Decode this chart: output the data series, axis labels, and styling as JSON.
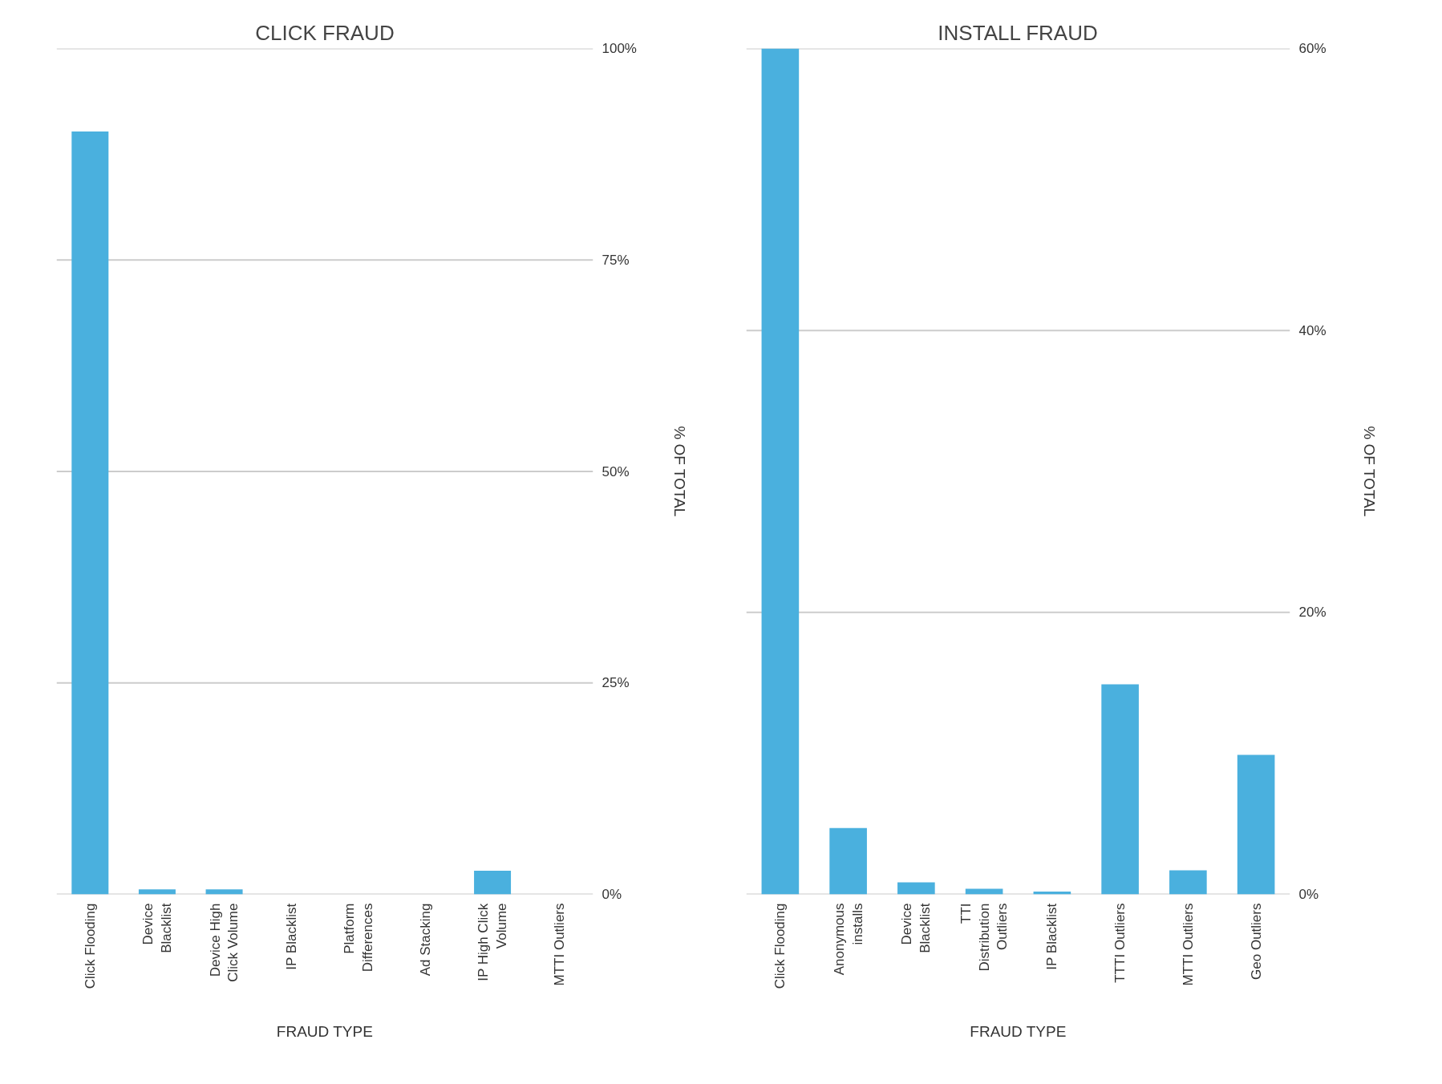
{
  "chart_data": [
    {
      "type": "bar",
      "title": "CLICK FRAUD",
      "xlabel": "FRAUD TYPE",
      "ylabel": "% OF TOTAL",
      "categories": [
        "Click Flooding",
        "Device Blacklist",
        "Device High Click Volume",
        "IP Blacklist",
        "Platform Differences",
        "Ad Stacking",
        "IP High Click Volume",
        "MTTI Outliers"
      ],
      "values": [
        90.2,
        0.6,
        0.6,
        0,
        0,
        0,
        2.8,
        0
      ],
      "color": "#4ab0de",
      "ylim": [
        0,
        100
      ],
      "yticks": [
        {
          "value": 0,
          "label": "0%"
        },
        {
          "value": 25,
          "label": "25%"
        },
        {
          "value": 50,
          "label": "50%"
        },
        {
          "value": 75,
          "label": "75%"
        },
        {
          "value": 100,
          "label": "100%"
        }
      ],
      "grid": "y"
    },
    {
      "type": "bar",
      "title": "INSTALL FRAUD",
      "xlabel": "FRAUD TYPE",
      "ylabel": "% OF TOTAL",
      "categories": [
        "Click Flooding",
        "Anonymous installs",
        "Device Blacklist",
        "TTI Distribution Outliers",
        "IP Blacklist",
        "TTTI Outliers",
        "MTTI Outliers",
        "Geo Outliers"
      ],
      "values": [
        60,
        4.7,
        0.85,
        0.4,
        0.2,
        14.9,
        1.7,
        9.9
      ],
      "color": "#4ab0de",
      "ylim": [
        0,
        60
      ],
      "yticks": [
        {
          "value": 0,
          "label": "0%"
        },
        {
          "value": 20,
          "label": "20%"
        },
        {
          "value": 40,
          "label": "40%"
        },
        {
          "value": 60,
          "label": "60%"
        }
      ],
      "grid": "y"
    }
  ]
}
